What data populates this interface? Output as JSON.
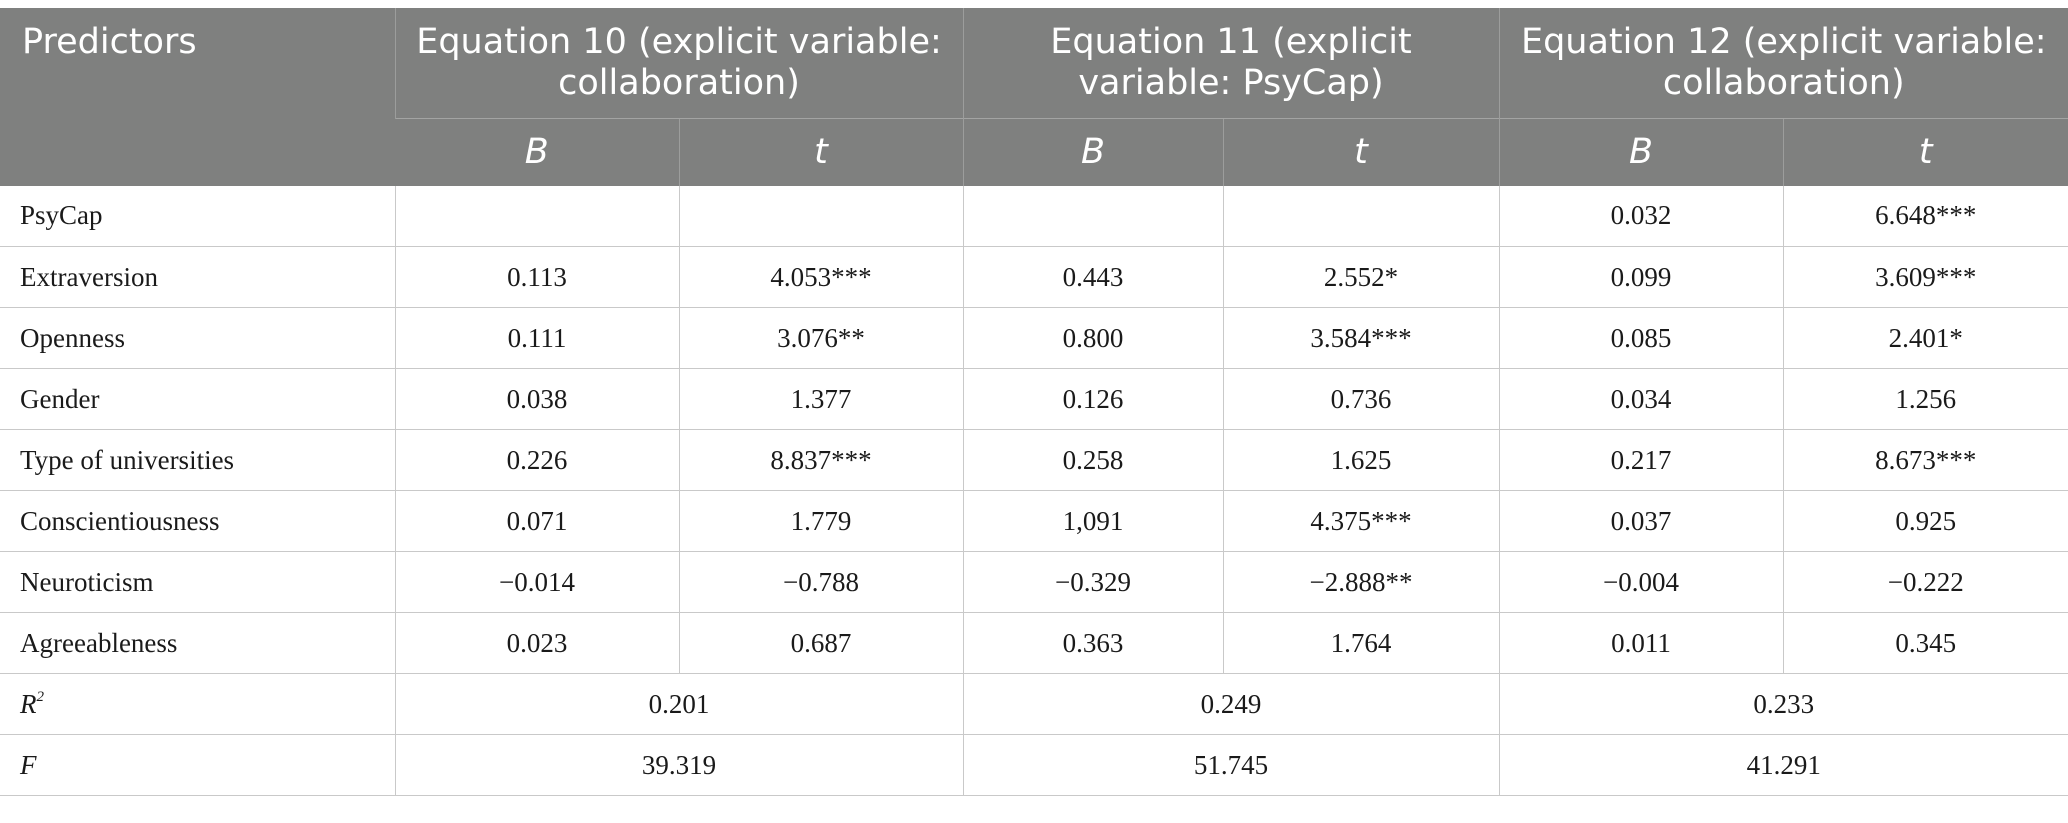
{
  "table": {
    "header": {
      "predictors": "Predictors",
      "equations": [
        "Equation 10 (explicit variable: collaboration)",
        "Equation 11 (explicit variable: PsyCap)",
        "Equation 12 (explicit variable: collaboration)"
      ],
      "b_label": "B",
      "t_label": "t"
    },
    "rows": [
      {
        "label": "PsyCap",
        "c": [
          "",
          "",
          "",
          "",
          "0.032",
          "6.648***"
        ]
      },
      {
        "label": "Extraversion",
        "c": [
          "0.113",
          "4.053***",
          "0.443",
          "2.552*",
          "0.099",
          "3.609***"
        ]
      },
      {
        "label": "Openness",
        "c": [
          "0.111",
          "3.076**",
          "0.800",
          "3.584***",
          "0.085",
          "2.401*"
        ]
      },
      {
        "label": "Gender",
        "c": [
          "0.038",
          "1.377",
          "0.126",
          "0.736",
          "0.034",
          "1.256"
        ]
      },
      {
        "label": "Type of universities",
        "c": [
          "0.226",
          "8.837***",
          "0.258",
          "1.625",
          "0.217",
          "8.673***"
        ]
      },
      {
        "label": "Conscientiousness",
        "c": [
          "0.071",
          "1.779",
          "1,091",
          "4.375***",
          "0.037",
          "0.925"
        ]
      },
      {
        "label": "Neuroticism",
        "c": [
          "−0.014",
          "−0.788",
          "−0.329",
          "−2.888**",
          "−0.004",
          "−0.222"
        ]
      },
      {
        "label": "Agreeableness",
        "c": [
          "0.023",
          "0.687",
          "0.363",
          "1.764",
          "0.011",
          "0.345"
        ]
      }
    ],
    "r2": {
      "label_base": "R",
      "label_sup": "2",
      "values": [
        "0.201",
        "0.249",
        "0.233"
      ]
    },
    "f": {
      "label": "F",
      "values": [
        "39.319",
        "51.745",
        "41.291"
      ]
    }
  }
}
